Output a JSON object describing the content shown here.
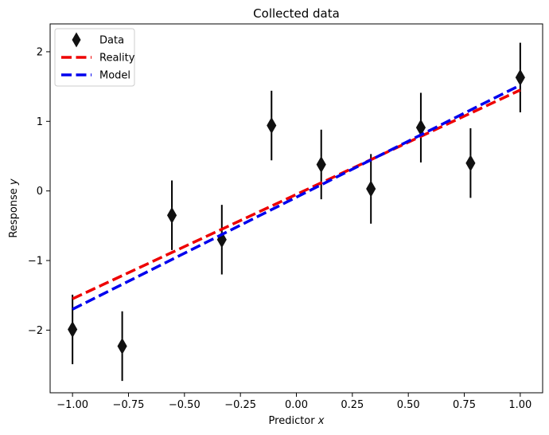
{
  "chart_data": {
    "type": "scatter",
    "title": "Collected data",
    "xlabel": "Predictor ",
    "xlabel_var": "x",
    "ylabel": "Response ",
    "ylabel_var": "y",
    "xlim": [
      -1.1,
      1.1
    ],
    "ylim": [
      -2.9,
      2.4
    ],
    "xticks": [
      -1.0,
      -0.75,
      -0.5,
      -0.25,
      0.0,
      0.25,
      0.5,
      0.75,
      1.0
    ],
    "xtick_labels": [
      "−1.00",
      "−0.75",
      "−0.50",
      "−0.25",
      "0.00",
      "0.25",
      "0.50",
      "0.75",
      "1.00"
    ],
    "yticks": [
      -2,
      -1,
      0,
      1,
      2
    ],
    "ytick_labels": [
      "−2",
      "−1",
      "0",
      "1",
      "2"
    ],
    "grid": false,
    "legend_position": "top-left",
    "series": [
      {
        "name": "Data",
        "kind": "errorbar-scatter",
        "marker": "diamond",
        "color": "#111111",
        "x": [
          -1.0,
          -0.778,
          -0.556,
          -0.333,
          -0.111,
          0.111,
          0.333,
          0.556,
          0.778,
          1.0
        ],
        "y": [
          -1.99,
          -2.23,
          -0.35,
          -0.7,
          0.94,
          0.38,
          0.03,
          0.91,
          0.4,
          1.63
        ],
        "yerr": 0.5
      },
      {
        "name": "Reality",
        "kind": "line",
        "style": "dashed",
        "color": "#ee0000",
        "x": [
          -1.0,
          1.0
        ],
        "y": [
          -1.55,
          1.45
        ]
      },
      {
        "name": "Model",
        "kind": "line",
        "style": "dashed",
        "color": "#0000ee",
        "x": [
          -1.0,
          1.0
        ],
        "y": [
          -1.7,
          1.52
        ]
      }
    ]
  }
}
